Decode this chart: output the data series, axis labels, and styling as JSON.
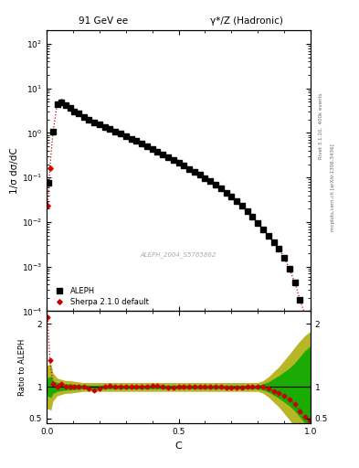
{
  "title_left": "91 GeV ee",
  "title_right": "γ*/Z (Hadronic)",
  "ylabel_main": "1/σ dσ/dC",
  "ylabel_ratio": "Ratio to ALEPH",
  "xlabel": "C",
  "right_label_top": "Rivet 3.1.10,  400k events",
  "right_label_bottom": "mcplots.cern.ch [arXiv:1306.3436]",
  "watermark": "ALEPH_2004_S5765862",
  "legend_entries": [
    "ALEPH",
    "Sherpa 2.1.0 default"
  ],
  "aleph_C": [
    0.008,
    0.024,
    0.04,
    0.056,
    0.072,
    0.088,
    0.104,
    0.12,
    0.14,
    0.16,
    0.18,
    0.2,
    0.22,
    0.24,
    0.26,
    0.28,
    0.3,
    0.32,
    0.34,
    0.36,
    0.38,
    0.4,
    0.42,
    0.44,
    0.46,
    0.48,
    0.5,
    0.52,
    0.54,
    0.56,
    0.58,
    0.6,
    0.62,
    0.64,
    0.66,
    0.68,
    0.7,
    0.72,
    0.74,
    0.76,
    0.78,
    0.8,
    0.82,
    0.84,
    0.86,
    0.88,
    0.9,
    0.92,
    0.94,
    0.96,
    0.98
  ],
  "aleph_y": [
    0.075,
    1.05,
    4.5,
    4.8,
    4.2,
    3.6,
    3.1,
    2.7,
    2.3,
    2.0,
    1.75,
    1.55,
    1.38,
    1.22,
    1.08,
    0.96,
    0.85,
    0.75,
    0.66,
    0.58,
    0.51,
    0.44,
    0.385,
    0.335,
    0.29,
    0.25,
    0.215,
    0.185,
    0.158,
    0.135,
    0.115,
    0.097,
    0.082,
    0.068,
    0.056,
    0.046,
    0.037,
    0.029,
    0.023,
    0.018,
    0.013,
    0.0095,
    0.007,
    0.005,
    0.0035,
    0.0025,
    0.0016,
    0.0009,
    0.00045,
    0.00018,
    8e-05
  ],
  "aleph_yerr": [
    0.01,
    0.06,
    0.12,
    0.1,
    0.09,
    0.07,
    0.06,
    0.05,
    0.04,
    0.035,
    0.03,
    0.025,
    0.022,
    0.02,
    0.018,
    0.016,
    0.014,
    0.012,
    0.011,
    0.01,
    0.009,
    0.008,
    0.007,
    0.006,
    0.005,
    0.0045,
    0.004,
    0.0035,
    0.003,
    0.0025,
    0.002,
    0.0018,
    0.0015,
    0.0013,
    0.001,
    0.0009,
    0.0007,
    0.0006,
    0.0005,
    0.0004,
    0.0003,
    0.00025,
    0.0002,
    0.00015,
    0.0001,
    8e-05,
    6e-05,
    6e-05,
    5e-05,
    3e-05,
    2e-05
  ],
  "sherpa_C": [
    0.004,
    0.012,
    0.024,
    0.04,
    0.056,
    0.072,
    0.088,
    0.104,
    0.12,
    0.14,
    0.16,
    0.18,
    0.2,
    0.22,
    0.24,
    0.26,
    0.28,
    0.3,
    0.32,
    0.34,
    0.36,
    0.38,
    0.4,
    0.42,
    0.44,
    0.46,
    0.48,
    0.5,
    0.52,
    0.54,
    0.56,
    0.58,
    0.6,
    0.62,
    0.64,
    0.66,
    0.68,
    0.7,
    0.72,
    0.74,
    0.76,
    0.78,
    0.8,
    0.82,
    0.84,
    0.86,
    0.88,
    0.9,
    0.92,
    0.94,
    0.96,
    0.98,
    0.995
  ],
  "sherpa_y": [
    0.023,
    0.16,
    1.05,
    4.5,
    5.0,
    4.3,
    3.65,
    3.1,
    2.7,
    2.3,
    2.0,
    1.75,
    1.55,
    1.38,
    1.22,
    1.08,
    0.96,
    0.85,
    0.75,
    0.66,
    0.58,
    0.51,
    0.445,
    0.385,
    0.335,
    0.29,
    0.25,
    0.215,
    0.185,
    0.158,
    0.135,
    0.115,
    0.097,
    0.082,
    0.068,
    0.056,
    0.046,
    0.037,
    0.029,
    0.023,
    0.018,
    0.013,
    0.0095,
    0.007,
    0.005,
    0.0035,
    0.0025,
    0.0016,
    0.0009,
    0.00045,
    0.00018,
    8e-05,
    3e-05
  ],
  "ratio_x": [
    0.004,
    0.012,
    0.024,
    0.04,
    0.056,
    0.072,
    0.088,
    0.104,
    0.12,
    0.14,
    0.16,
    0.18,
    0.2,
    0.22,
    0.24,
    0.26,
    0.28,
    0.3,
    0.32,
    0.34,
    0.36,
    0.38,
    0.4,
    0.42,
    0.44,
    0.46,
    0.48,
    0.5,
    0.52,
    0.54,
    0.56,
    0.58,
    0.6,
    0.62,
    0.64,
    0.66,
    0.68,
    0.7,
    0.72,
    0.74,
    0.76,
    0.78,
    0.8,
    0.82,
    0.84,
    0.86,
    0.88,
    0.9,
    0.92,
    0.94,
    0.96,
    0.98,
    0.995
  ],
  "ratio_y": [
    2.1,
    1.42,
    1.05,
    1.0,
    1.05,
    1.0,
    1.0,
    1.0,
    1.0,
    1.0,
    0.98,
    0.94,
    0.98,
    1.0,
    1.02,
    1.01,
    1.01,
    1.01,
    1.01,
    1.01,
    1.01,
    1.01,
    1.02,
    1.02,
    1.01,
    0.99,
    0.99,
    1.0,
    1.0,
    1.0,
    1.0,
    1.0,
    1.0,
    1.0,
    1.0,
    1.0,
    0.99,
    0.99,
    0.99,
    0.99,
    1.0,
    1.0,
    1.01,
    1.01,
    0.97,
    0.93,
    0.9,
    0.86,
    0.8,
    0.73,
    0.62,
    0.52,
    0.47
  ],
  "band_x": [
    0.0,
    0.008,
    0.016,
    0.024,
    0.04,
    0.056,
    0.072,
    0.088,
    0.104,
    0.12,
    0.14,
    0.16,
    0.18,
    0.2,
    0.22,
    0.24,
    0.26,
    0.28,
    0.3,
    0.32,
    0.34,
    0.36,
    0.38,
    0.4,
    0.42,
    0.44,
    0.46,
    0.48,
    0.5,
    0.52,
    0.54,
    0.56,
    0.58,
    0.6,
    0.62,
    0.64,
    0.66,
    0.68,
    0.7,
    0.72,
    0.74,
    0.76,
    0.78,
    0.8,
    0.82,
    0.84,
    0.86,
    0.88,
    0.9,
    0.92,
    0.94,
    0.96,
    0.98,
    1.0
  ],
  "band_green_lo": [
    0.85,
    0.85,
    0.83,
    0.9,
    0.93,
    0.94,
    0.95,
    0.95,
    0.96,
    0.96,
    0.97,
    0.97,
    0.97,
    0.97,
    0.97,
    0.97,
    0.97,
    0.97,
    0.97,
    0.97,
    0.97,
    0.97,
    0.97,
    0.97,
    0.97,
    0.97,
    0.97,
    0.97,
    0.97,
    0.97,
    0.97,
    0.97,
    0.97,
    0.97,
    0.97,
    0.97,
    0.97,
    0.97,
    0.97,
    0.97,
    0.97,
    0.97,
    0.97,
    0.97,
    0.95,
    0.92,
    0.87,
    0.82,
    0.76,
    0.7,
    0.62,
    0.52,
    0.42,
    0.35
  ],
  "band_green_hi": [
    1.15,
    1.15,
    1.17,
    1.1,
    1.07,
    1.06,
    1.05,
    1.05,
    1.04,
    1.04,
    1.03,
    1.03,
    1.03,
    1.03,
    1.03,
    1.03,
    1.03,
    1.03,
    1.03,
    1.03,
    1.03,
    1.03,
    1.03,
    1.03,
    1.03,
    1.03,
    1.03,
    1.03,
    1.03,
    1.03,
    1.03,
    1.03,
    1.03,
    1.03,
    1.03,
    1.03,
    1.03,
    1.03,
    1.03,
    1.03,
    1.03,
    1.03,
    1.03,
    1.03,
    1.05,
    1.08,
    1.13,
    1.18,
    1.24,
    1.3,
    1.38,
    1.48,
    1.58,
    1.65
  ],
  "band_yellow_lo": [
    0.65,
    0.65,
    0.63,
    0.78,
    0.86,
    0.88,
    0.9,
    0.9,
    0.91,
    0.92,
    0.93,
    0.93,
    0.93,
    0.93,
    0.93,
    0.93,
    0.93,
    0.93,
    0.93,
    0.93,
    0.93,
    0.93,
    0.93,
    0.93,
    0.93,
    0.93,
    0.93,
    0.93,
    0.93,
    0.93,
    0.93,
    0.93,
    0.93,
    0.93,
    0.93,
    0.93,
    0.93,
    0.93,
    0.93,
    0.93,
    0.93,
    0.93,
    0.93,
    0.93,
    0.9,
    0.84,
    0.76,
    0.68,
    0.58,
    0.48,
    0.37,
    0.27,
    0.18,
    0.12
  ],
  "band_yellow_hi": [
    1.35,
    1.35,
    1.37,
    1.22,
    1.14,
    1.12,
    1.1,
    1.1,
    1.09,
    1.08,
    1.07,
    1.07,
    1.07,
    1.07,
    1.07,
    1.07,
    1.07,
    1.07,
    1.07,
    1.07,
    1.07,
    1.07,
    1.07,
    1.07,
    1.07,
    1.07,
    1.07,
    1.07,
    1.07,
    1.07,
    1.07,
    1.07,
    1.07,
    1.07,
    1.07,
    1.07,
    1.07,
    1.07,
    1.07,
    1.07,
    1.07,
    1.07,
    1.07,
    1.07,
    1.1,
    1.16,
    1.24,
    1.32,
    1.42,
    1.52,
    1.63,
    1.73,
    1.82,
    1.88
  ],
  "ylim_main": [
    0.0001,
    200
  ],
  "ylim_ratio": [
    0.42,
    2.2
  ],
  "xlim": [
    0.0,
    1.0
  ],
  "color_aleph": "#000000",
  "color_sherpa": "#cc0000",
  "color_green_band": "#00aa00",
  "color_yellow_band": "#aaaa00",
  "bg_color": "#ffffff"
}
